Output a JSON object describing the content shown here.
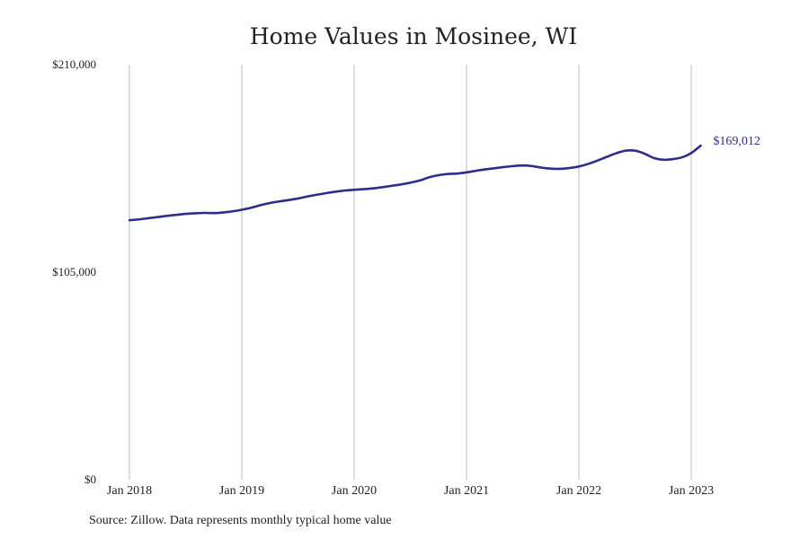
{
  "chart_data": {
    "type": "line",
    "title": "Home Values in Mosinee, WI",
    "source": "Source: Zillow. Data represents monthly typical home value",
    "ylim": [
      0,
      210000
    ],
    "y_ticks": [
      0,
      105000,
      210000
    ],
    "y_tick_labels": [
      "$0",
      "$105,000",
      "$210,000"
    ],
    "x_ticks": [
      "2018-01",
      "2019-01",
      "2020-01",
      "2021-01",
      "2022-01",
      "2023-01"
    ],
    "x_tick_labels": [
      "Jan 2018",
      "Jan 2019",
      "Jan 2020",
      "Jan 2021",
      "Jan 2022",
      "Jan 2023"
    ],
    "grid": "vertical",
    "line_color": "#2e2d8c",
    "grid_color": "#bbbbbb",
    "end_label": "$169,012",
    "series": [
      {
        "x": [
          "2018-01",
          "2018-02",
          "2018-03",
          "2018-04",
          "2018-05",
          "2018-06",
          "2018-07",
          "2018-08",
          "2018-09",
          "2018-10",
          "2018-11",
          "2018-12",
          "2019-01",
          "2019-02",
          "2019-03",
          "2019-04",
          "2019-05",
          "2019-06",
          "2019-07",
          "2019-08",
          "2019-09",
          "2019-10",
          "2019-11",
          "2019-12",
          "2020-01",
          "2020-02",
          "2020-03",
          "2020-04",
          "2020-05",
          "2020-06",
          "2020-07",
          "2020-08",
          "2020-09",
          "2020-10",
          "2020-11",
          "2020-12",
          "2021-01",
          "2021-02",
          "2021-03",
          "2021-04",
          "2021-05",
          "2021-06",
          "2021-07",
          "2021-08",
          "2021-09",
          "2021-10",
          "2021-11",
          "2021-12",
          "2022-01",
          "2022-02",
          "2022-03",
          "2022-04",
          "2022-05",
          "2022-06",
          "2022-07",
          "2022-08",
          "2022-09",
          "2022-10",
          "2022-11",
          "2022-12",
          "2023-01",
          "2023-02"
        ],
        "values": [
          131300,
          131700,
          132300,
          132900,
          133500,
          134000,
          134500,
          134800,
          135000,
          134900,
          135200,
          135800,
          136600,
          137600,
          138900,
          140000,
          140800,
          141500,
          142300,
          143300,
          144200,
          145000,
          145700,
          146300,
          146700,
          147000,
          147400,
          148000,
          148700,
          149400,
          150300,
          151400,
          153000,
          154100,
          154700,
          154900,
          155500,
          156300,
          157000,
          157600,
          158200,
          158700,
          159000,
          158700,
          157900,
          157400,
          157300,
          157700,
          158500,
          159800,
          161500,
          163400,
          165200,
          166500,
          166500,
          165000,
          162800,
          161900,
          162200,
          163100,
          165300,
          169012
        ]
      }
    ]
  }
}
